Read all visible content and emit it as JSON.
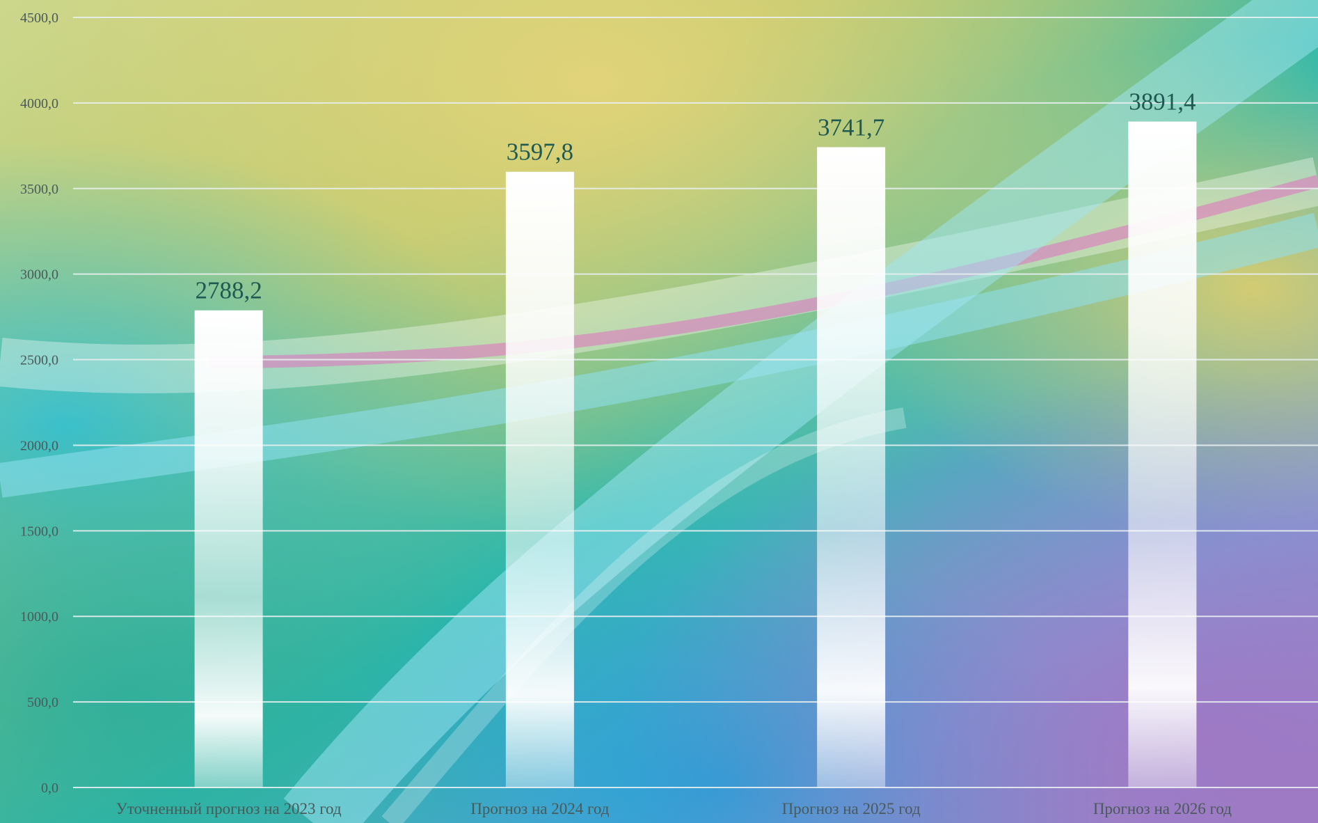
{
  "chart_data": {
    "type": "bar",
    "categories": [
      "Уточненный прогноз на 2023 год",
      "Прогноз на 2024 год",
      "Прогноз на 2025 год",
      "Прогноз на 2026 год"
    ],
    "values": [
      2788.2,
      3597.8,
      3741.7,
      3891.4
    ],
    "value_labels": [
      "2788,2",
      "3597,8",
      "3741,7",
      "3891,4"
    ],
    "y_ticks": [
      "0,0",
      "500,0",
      "1000,0",
      "1500,0",
      "2000,0",
      "2500,0",
      "3000,0",
      "3500,0",
      "4000,0",
      "4500,0"
    ],
    "ylim": [
      0,
      4500
    ],
    "title": "",
    "xlabel": "",
    "ylabel": "",
    "grid": true,
    "legend": "none",
    "colors": {
      "bar": "#ffffff",
      "gridline": "#e8eef0",
      "value_label": "#1f5a52",
      "axis_label": "#4a5a5a"
    }
  }
}
